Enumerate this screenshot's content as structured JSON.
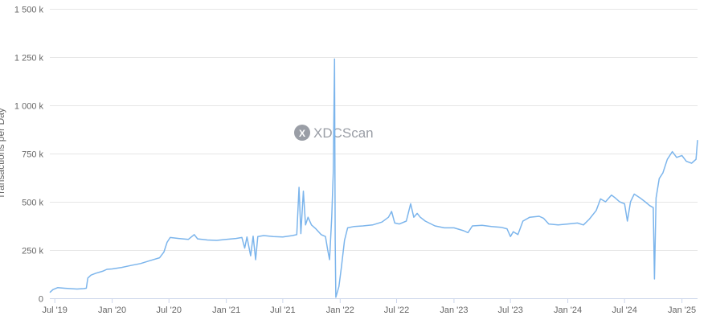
{
  "watermark": {
    "icon_letter": "X",
    "text": "XDCScan"
  },
  "colors": {
    "line": "#7cb5ec",
    "grid": "#e6e6e6",
    "tick_text": "#666666",
    "watermark": "#9a9ea6"
  },
  "chart_data": {
    "type": "line",
    "title": "",
    "xlabel": "",
    "ylabel": "Transactions per Day",
    "ylim": [
      0,
      1500000
    ],
    "yticks": [
      {
        "value": 0,
        "label": "0"
      },
      {
        "value": 250000,
        "label": "250 k"
      },
      {
        "value": 500000,
        "label": "500 k"
      },
      {
        "value": 750000,
        "label": "750 k"
      },
      {
        "value": 1000000,
        "label": "1 000 k"
      },
      {
        "value": 1250000,
        "label": "1 250 k"
      },
      {
        "value": 1500000,
        "label": "1 500 k"
      }
    ],
    "xlim": [
      "2019-06-15",
      "2025-02-20"
    ],
    "xticks": [
      {
        "date": "2019-07-01",
        "label": "Jul '19"
      },
      {
        "date": "2020-01-01",
        "label": "Jan '20"
      },
      {
        "date": "2020-07-01",
        "label": "Jul '20"
      },
      {
        "date": "2021-01-01",
        "label": "Jan '21"
      },
      {
        "date": "2021-07-01",
        "label": "Jul '21"
      },
      {
        "date": "2022-01-01",
        "label": "Jan '22"
      },
      {
        "date": "2022-07-01",
        "label": "Jul '22"
      },
      {
        "date": "2023-01-01",
        "label": "Jan '23"
      },
      {
        "date": "2023-07-01",
        "label": "Jul '23"
      },
      {
        "date": "2024-01-01",
        "label": "Jan '24"
      },
      {
        "date": "2024-07-01",
        "label": "Jul '24"
      },
      {
        "date": "2025-01-01",
        "label": "Jan '25"
      }
    ],
    "grid": true,
    "legend": false,
    "series": [
      {
        "name": "",
        "points": [
          [
            "2019-06-15",
            30000
          ],
          [
            "2019-06-25",
            45000
          ],
          [
            "2019-07-10",
            55000
          ],
          [
            "2019-08-01",
            52000
          ],
          [
            "2019-08-20",
            50000
          ],
          [
            "2019-09-10",
            48000
          ],
          [
            "2019-10-01",
            50000
          ],
          [
            "2019-10-10",
            52000
          ],
          [
            "2019-10-15",
            105000
          ],
          [
            "2019-10-25",
            120000
          ],
          [
            "2019-11-10",
            130000
          ],
          [
            "2019-12-01",
            140000
          ],
          [
            "2019-12-15",
            150000
          ],
          [
            "2020-01-01",
            152000
          ],
          [
            "2020-02-01",
            160000
          ],
          [
            "2020-03-01",
            170000
          ],
          [
            "2020-04-01",
            180000
          ],
          [
            "2020-05-01",
            195000
          ],
          [
            "2020-06-01",
            210000
          ],
          [
            "2020-06-15",
            240000
          ],
          [
            "2020-06-25",
            290000
          ],
          [
            "2020-07-05",
            315000
          ],
          [
            "2020-08-01",
            310000
          ],
          [
            "2020-09-01",
            305000
          ],
          [
            "2020-09-20",
            330000
          ],
          [
            "2020-10-01",
            308000
          ],
          [
            "2020-11-01",
            302000
          ],
          [
            "2020-12-01",
            300000
          ],
          [
            "2021-01-01",
            305000
          ],
          [
            "2021-02-01",
            310000
          ],
          [
            "2021-02-20",
            315000
          ],
          [
            "2021-03-01",
            260000
          ],
          [
            "2021-03-08",
            318000
          ],
          [
            "2021-03-20",
            220000
          ],
          [
            "2021-03-28",
            322000
          ],
          [
            "2021-04-05",
            200000
          ],
          [
            "2021-04-12",
            320000
          ],
          [
            "2021-05-01",
            325000
          ],
          [
            "2021-06-01",
            320000
          ],
          [
            "2021-07-01",
            318000
          ],
          [
            "2021-08-01",
            325000
          ],
          [
            "2021-08-15",
            330000
          ],
          [
            "2021-08-22",
            575000
          ],
          [
            "2021-08-28",
            335000
          ],
          [
            "2021-09-05",
            555000
          ],
          [
            "2021-09-12",
            380000
          ],
          [
            "2021-09-20",
            420000
          ],
          [
            "2021-10-01",
            380000
          ],
          [
            "2021-10-15",
            360000
          ],
          [
            "2021-11-01",
            330000
          ],
          [
            "2021-11-15",
            320000
          ],
          [
            "2021-11-22",
            250000
          ],
          [
            "2021-11-28",
            200000
          ],
          [
            "2021-12-05",
            420000
          ],
          [
            "2021-12-10",
            650000
          ],
          [
            "2021-12-14",
            1240000
          ],
          [
            "2021-12-16",
            300000
          ],
          [
            "2021-12-18",
            5000
          ],
          [
            "2021-12-28",
            60000
          ],
          [
            "2022-01-05",
            160000
          ],
          [
            "2022-01-15",
            300000
          ],
          [
            "2022-01-25",
            365000
          ],
          [
            "2022-02-15",
            372000
          ],
          [
            "2022-03-15",
            375000
          ],
          [
            "2022-04-15",
            380000
          ],
          [
            "2022-05-15",
            395000
          ],
          [
            "2022-06-05",
            420000
          ],
          [
            "2022-06-15",
            450000
          ],
          [
            "2022-06-25",
            390000
          ],
          [
            "2022-07-10",
            385000
          ],
          [
            "2022-08-01",
            400000
          ],
          [
            "2022-08-15",
            490000
          ],
          [
            "2022-08-25",
            420000
          ],
          [
            "2022-09-05",
            440000
          ],
          [
            "2022-09-15",
            420000
          ],
          [
            "2022-10-01",
            400000
          ],
          [
            "2022-11-01",
            375000
          ],
          [
            "2022-12-01",
            365000
          ],
          [
            "2023-01-01",
            365000
          ],
          [
            "2023-02-01",
            350000
          ],
          [
            "2023-02-15",
            340000
          ],
          [
            "2023-03-01",
            375000
          ],
          [
            "2023-04-01",
            378000
          ],
          [
            "2023-05-01",
            372000
          ],
          [
            "2023-06-01",
            368000
          ],
          [
            "2023-06-20",
            360000
          ],
          [
            "2023-07-01",
            320000
          ],
          [
            "2023-07-10",
            345000
          ],
          [
            "2023-07-25",
            330000
          ],
          [
            "2023-08-10",
            400000
          ],
          [
            "2023-09-01",
            420000
          ],
          [
            "2023-10-01",
            425000
          ],
          [
            "2023-10-15",
            415000
          ],
          [
            "2023-11-01",
            385000
          ],
          [
            "2023-12-01",
            380000
          ],
          [
            "2024-01-01",
            385000
          ],
          [
            "2024-02-01",
            390000
          ],
          [
            "2024-02-20",
            380000
          ],
          [
            "2024-03-10",
            410000
          ],
          [
            "2024-04-01",
            455000
          ],
          [
            "2024-04-15",
            515000
          ],
          [
            "2024-05-01",
            500000
          ],
          [
            "2024-05-20",
            535000
          ],
          [
            "2024-06-01",
            520000
          ],
          [
            "2024-06-15",
            500000
          ],
          [
            "2024-07-01",
            490000
          ],
          [
            "2024-07-10",
            400000
          ],
          [
            "2024-07-20",
            500000
          ],
          [
            "2024-08-01",
            540000
          ],
          [
            "2024-08-20",
            520000
          ],
          [
            "2024-09-05",
            500000
          ],
          [
            "2024-09-20",
            480000
          ],
          [
            "2024-10-01",
            470000
          ],
          [
            "2024-10-05",
            100000
          ],
          [
            "2024-10-10",
            520000
          ],
          [
            "2024-10-20",
            620000
          ],
          [
            "2024-11-01",
            650000
          ],
          [
            "2024-11-15",
            720000
          ],
          [
            "2024-12-01",
            760000
          ],
          [
            "2024-12-15",
            730000
          ],
          [
            "2025-01-01",
            740000
          ],
          [
            "2025-01-15",
            710000
          ],
          [
            "2025-02-01",
            700000
          ],
          [
            "2025-02-15",
            720000
          ],
          [
            "2025-02-20",
            820000
          ]
        ]
      }
    ]
  }
}
